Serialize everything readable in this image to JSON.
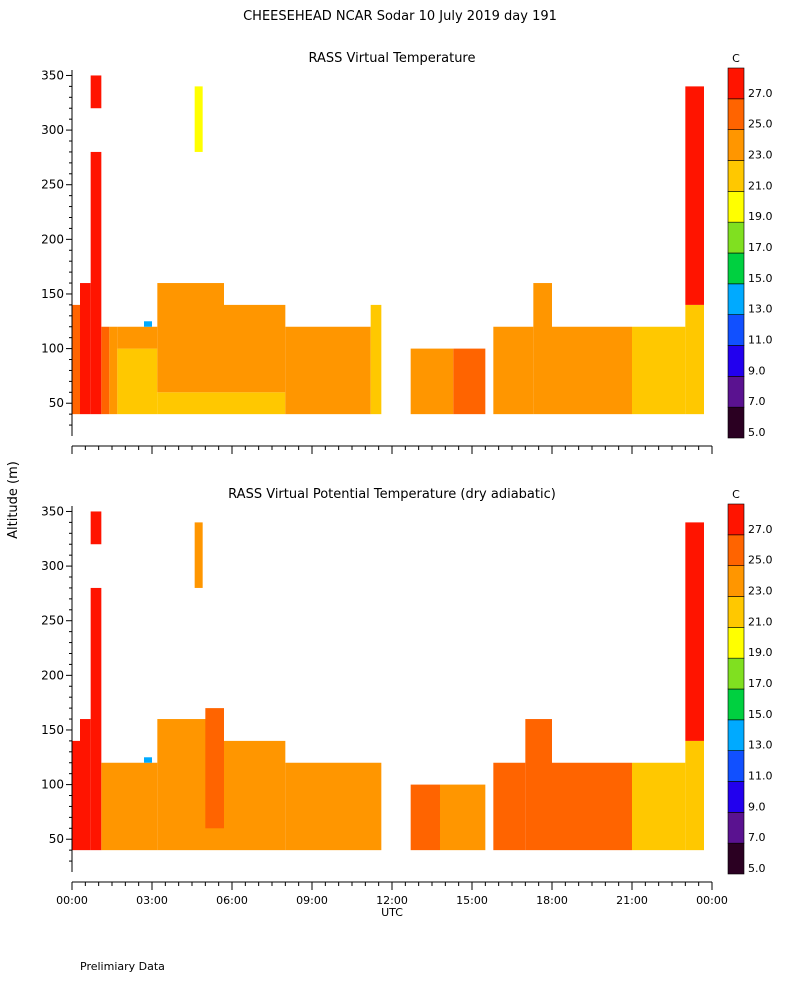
{
  "header": {
    "title": "CHEESEHEAD   NCAR Sodar   10 July 2019   day 191"
  },
  "footer": {
    "note": "Prelimiary Data"
  },
  "shared": {
    "ylabel": "Altitude (m)",
    "xlabel": "UTC",
    "colorbar_unit": "C",
    "colorbar_levels": [
      "5.0",
      "7.0",
      "9.0",
      "11.0",
      "13.0",
      "15.0",
      "17.0",
      "19.0",
      "21.0",
      "23.0",
      "25.0",
      "27.0"
    ],
    "colorbar_colors": [
      "#2b0022",
      "#5a1290",
      "#2200ee",
      "#1150ff",
      "#00aaff",
      "#00d040",
      "#80e020",
      "#ffff00",
      "#ffc800",
      "#ff9600",
      "#ff6400",
      "#ff1400"
    ]
  },
  "chart_data": [
    {
      "type": "heatmap",
      "title": "RASS Virtual Temperature",
      "xlabel": "UTC",
      "ylabel": "Altitude (m)",
      "x_ticks": [
        "00:00",
        "03:00",
        "06:00",
        "09:00",
        "12:00",
        "15:00",
        "18:00",
        "21:00",
        "00:00"
      ],
      "x_range_hours": [
        0,
        24
      ],
      "y_ticks": [
        50,
        100,
        150,
        200,
        250,
        300,
        350
      ],
      "y_range": [
        20,
        355
      ],
      "colorbar_levels": [
        5,
        7,
        9,
        11,
        13,
        15,
        17,
        19,
        21,
        23,
        25,
        27
      ],
      "cells": [
        {
          "t0": 0.0,
          "t1": 0.3,
          "z0": 40,
          "z1": 140,
          "v": 25
        },
        {
          "t0": 0.3,
          "t1": 0.7,
          "z0": 40,
          "z1": 160,
          "v": 27
        },
        {
          "t0": 0.7,
          "t1": 1.1,
          "z0": 40,
          "z1": 280,
          "v": 27
        },
        {
          "t0": 0.7,
          "t1": 1.1,
          "z0": 320,
          "z1": 350,
          "v": 27
        },
        {
          "t0": 1.1,
          "t1": 1.4,
          "z0": 40,
          "z1": 120,
          "v": 25
        },
        {
          "t0": 1.4,
          "t1": 1.7,
          "z0": 40,
          "z1": 120,
          "v": 23
        },
        {
          "t0": 1.7,
          "t1": 3.2,
          "z0": 40,
          "z1": 100,
          "v": 21
        },
        {
          "t0": 1.7,
          "t1": 3.2,
          "z0": 100,
          "z1": 120,
          "v": 23
        },
        {
          "t0": 2.7,
          "t1": 3.0,
          "z0": 120,
          "z1": 125,
          "v": 13
        },
        {
          "t0": 3.2,
          "t1": 8.0,
          "z0": 40,
          "z1": 60,
          "v": 21
        },
        {
          "t0": 3.2,
          "t1": 5.7,
          "z0": 60,
          "z1": 160,
          "v": 23
        },
        {
          "t0": 4.6,
          "t1": 4.9,
          "z0": 280,
          "z1": 340,
          "v": 20
        },
        {
          "t0": 5.7,
          "t1": 8.0,
          "z0": 60,
          "z1": 140,
          "v": 23
        },
        {
          "t0": 8.0,
          "t1": 11.2,
          "z0": 40,
          "z1": 120,
          "v": 23
        },
        {
          "t0": 11.2,
          "t1": 11.6,
          "z0": 40,
          "z1": 140,
          "v": 21
        },
        {
          "t0": 12.7,
          "t1": 14.3,
          "z0": 40,
          "z1": 100,
          "v": 23
        },
        {
          "t0": 14.3,
          "t1": 15.5,
          "z0": 40,
          "z1": 100,
          "v": 25
        },
        {
          "t0": 15.8,
          "t1": 17.3,
          "z0": 40,
          "z1": 120,
          "v": 23
        },
        {
          "t0": 17.3,
          "t1": 18.0,
          "z0": 40,
          "z1": 160,
          "v": 23
        },
        {
          "t0": 18.0,
          "t1": 21.0,
          "z0": 40,
          "z1": 120,
          "v": 23
        },
        {
          "t0": 21.0,
          "t1": 23.0,
          "z0": 40,
          "z1": 120,
          "v": 21
        },
        {
          "t0": 23.0,
          "t1": 23.7,
          "z0": 40,
          "z1": 140,
          "v": 21
        },
        {
          "t0": 23.0,
          "t1": 23.7,
          "z0": 140,
          "z1": 340,
          "v": 27
        }
      ]
    },
    {
      "type": "heatmap",
      "title": "RASS Virtual Potential Temperature (dry adiabatic)",
      "xlabel": "UTC",
      "ylabel": "Altitude (m)",
      "x_ticks": [
        "00:00",
        "03:00",
        "06:00",
        "09:00",
        "12:00",
        "15:00",
        "18:00",
        "21:00",
        "00:00"
      ],
      "x_range_hours": [
        0,
        24
      ],
      "y_ticks": [
        50,
        100,
        150,
        200,
        250,
        300,
        350
      ],
      "y_range": [
        20,
        355
      ],
      "colorbar_levels": [
        5,
        7,
        9,
        11,
        13,
        15,
        17,
        19,
        21,
        23,
        25,
        27
      ],
      "cells": [
        {
          "t0": 0.0,
          "t1": 0.3,
          "z0": 40,
          "z1": 140,
          "v": 27
        },
        {
          "t0": 0.3,
          "t1": 0.7,
          "z0": 40,
          "z1": 160,
          "v": 27
        },
        {
          "t0": 0.7,
          "t1": 1.1,
          "z0": 40,
          "z1": 280,
          "v": 27
        },
        {
          "t0": 0.7,
          "t1": 1.1,
          "z0": 320,
          "z1": 350,
          "v": 27
        },
        {
          "t0": 1.1,
          "t1": 3.2,
          "z0": 40,
          "z1": 120,
          "v": 23
        },
        {
          "t0": 2.7,
          "t1": 3.0,
          "z0": 120,
          "z1": 125,
          "v": 13
        },
        {
          "t0": 3.2,
          "t1": 5.7,
          "z0": 40,
          "z1": 160,
          "v": 23
        },
        {
          "t0": 4.6,
          "t1": 4.9,
          "z0": 280,
          "z1": 340,
          "v": 23
        },
        {
          "t0": 5.0,
          "t1": 5.7,
          "z0": 60,
          "z1": 170,
          "v": 25
        },
        {
          "t0": 5.7,
          "t1": 8.0,
          "z0": 40,
          "z1": 140,
          "v": 23
        },
        {
          "t0": 8.0,
          "t1": 11.6,
          "z0": 40,
          "z1": 120,
          "v": 23
        },
        {
          "t0": 12.7,
          "t1": 13.8,
          "z0": 40,
          "z1": 100,
          "v": 25
        },
        {
          "t0": 13.8,
          "t1": 15.5,
          "z0": 40,
          "z1": 100,
          "v": 23
        },
        {
          "t0": 15.8,
          "t1": 17.0,
          "z0": 40,
          "z1": 120,
          "v": 25
        },
        {
          "t0": 17.0,
          "t1": 18.0,
          "z0": 40,
          "z1": 160,
          "v": 25
        },
        {
          "t0": 18.0,
          "t1": 21.0,
          "z0": 40,
          "z1": 120,
          "v": 25
        },
        {
          "t0": 21.0,
          "t1": 23.0,
          "z0": 40,
          "z1": 120,
          "v": 21
        },
        {
          "t0": 23.0,
          "t1": 23.7,
          "z0": 40,
          "z1": 140,
          "v": 21
        },
        {
          "t0": 23.0,
          "t1": 23.7,
          "z0": 140,
          "z1": 340,
          "v": 27
        }
      ]
    }
  ]
}
